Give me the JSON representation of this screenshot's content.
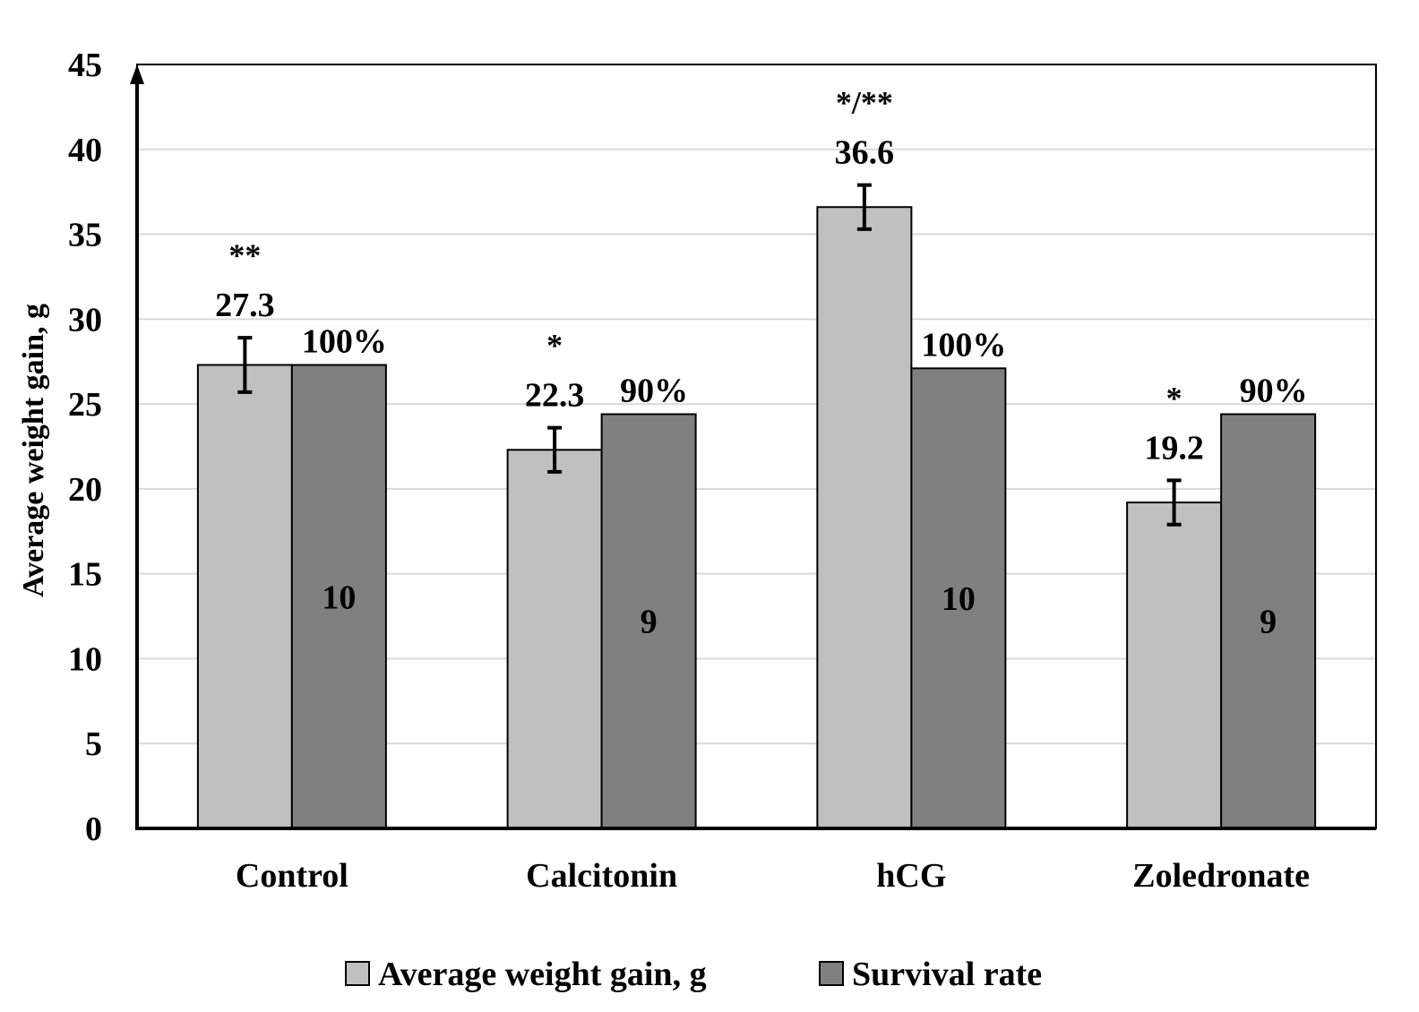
{
  "chart_data": {
    "type": "bar",
    "title": "",
    "xlabel": "",
    "ylabel": "Average weight gain, g",
    "ylim": [
      0,
      45
    ],
    "yticks": [
      0,
      5,
      10,
      15,
      20,
      25,
      30,
      35,
      40,
      45
    ],
    "grid": true,
    "legend_position": "bottom",
    "categories": [
      "Control",
      "Calcitonin",
      "hCG",
      "Zoledronate"
    ],
    "series": [
      {
        "name": "Average weight gain, g",
        "color": "#c0c0c0",
        "values": [
          27.3,
          22.3,
          36.6,
          19.2
        ],
        "error": [
          1.6,
          1.3,
          1.3,
          1.3
        ],
        "value_labels": [
          "27.3",
          "22.3",
          "36.6",
          "19.2"
        ],
        "significance": [
          "**",
          "*",
          "*/**",
          "*"
        ]
      },
      {
        "name": "Survival rate",
        "color": "#808080",
        "values": [
          27.3,
          24.4,
          27.1,
          24.4
        ],
        "top_labels": [
          "100%",
          "90%",
          "100%",
          "90%"
        ],
        "inner_labels": [
          "10",
          "9",
          "10",
          "9"
        ]
      }
    ]
  }
}
